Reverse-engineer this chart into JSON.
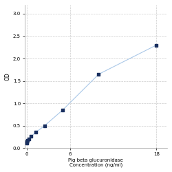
{
  "x_data": [
    0.0,
    0.078,
    0.156,
    0.313,
    0.625,
    1.25,
    2.5,
    5.0,
    10.0,
    18.0
  ],
  "y_data": [
    0.108,
    0.148,
    0.168,
    0.198,
    0.258,
    0.35,
    0.5,
    0.85,
    1.65,
    2.3
  ],
  "line_color": "#aac8e8",
  "marker_color": "#1a3060",
  "marker_size": 3,
  "xlabel_line1": "Pig beta glucuronidase",
  "xlabel_line2": "Concentration (ng/ml)",
  "ylabel": "OD",
  "xlim": [
    -0.3,
    19.5
  ],
  "ylim": [
    0.0,
    3.2
  ],
  "yticks": [
    0,
    0.5,
    1.0,
    1.5,
    2.0,
    2.5,
    3.0
  ],
  "xticks": [
    0,
    6,
    18
  ],
  "grid_color": "#cccccc",
  "bg_color": "#ffffff",
  "xlabel_fontsize": 5.0,
  "ylabel_fontsize": 5.5,
  "tick_fontsize": 5.0
}
